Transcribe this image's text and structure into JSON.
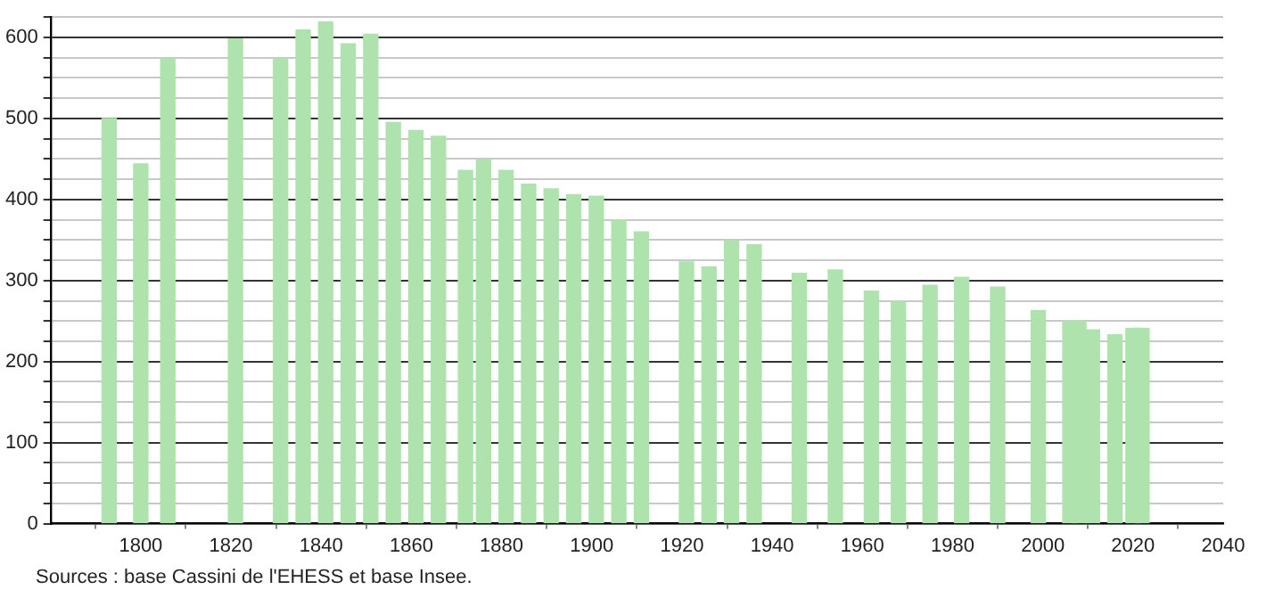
{
  "chart_data": {
    "type": "bar",
    "color": "#aee3ae",
    "x": [
      1793,
      1800,
      1806,
      1821,
      1831,
      1836,
      1841,
      1846,
      1851,
      1856,
      1861,
      1866,
      1872,
      1876,
      1881,
      1886,
      1891,
      1896,
      1901,
      1906,
      1911,
      1921,
      1926,
      1931,
      1936,
      1946,
      1954,
      1962,
      1968,
      1975,
      1982,
      1990,
      1999,
      2006,
      2008,
      2011,
      2016,
      2020,
      2022
    ],
    "values": [
      500,
      444,
      574,
      598,
      574,
      609,
      619,
      592,
      604,
      495,
      485,
      478,
      436,
      449,
      436,
      419,
      413,
      406,
      404,
      375,
      360,
      323,
      317,
      349,
      344,
      309,
      313,
      287,
      274,
      294,
      304,
      292,
      263,
      250,
      250,
      239,
      233,
      241,
      241
    ],
    "xlim": [
      1780,
      2040
    ],
    "xticks": [
      1800,
      1820,
      1840,
      1860,
      1880,
      1900,
      1920,
      1940,
      1960,
      1980,
      2000,
      2020,
      2040
    ],
    "ylim": [
      0,
      625
    ],
    "yticks": [
      0,
      {
        "value": 25,
        "label": null
      },
      {
        "value": 50,
        "label": null
      },
      {
        "value": 75,
        "label": null
      },
      100,
      {
        "value": 125,
        "label": null
      },
      {
        "value": 150,
        "label": null
      },
      {
        "value": 175,
        "label": null
      },
      200,
      {
        "value": 225,
        "label": null
      },
      {
        "value": 250,
        "label": null
      },
      {
        "value": 275,
        "label": null
      },
      300,
      {
        "value": 325,
        "label": null
      },
      {
        "value": 350,
        "label": null
      },
      {
        "value": 375,
        "label": null
      },
      400,
      {
        "value": 425,
        "label": null
      },
      {
        "value": 450,
        "label": null
      },
      {
        "value": 475,
        "label": null
      },
      500,
      {
        "value": 525,
        "label": null
      },
      {
        "value": 550,
        "label": null
      },
      {
        "value": 575,
        "label": null
      },
      600,
      {
        "value": 625,
        "label": null
      }
    ],
    "grid": "y",
    "legend": false,
    "annotations": [
      "Sources : base Cassini de l'EHESS et base Insee."
    ]
  }
}
